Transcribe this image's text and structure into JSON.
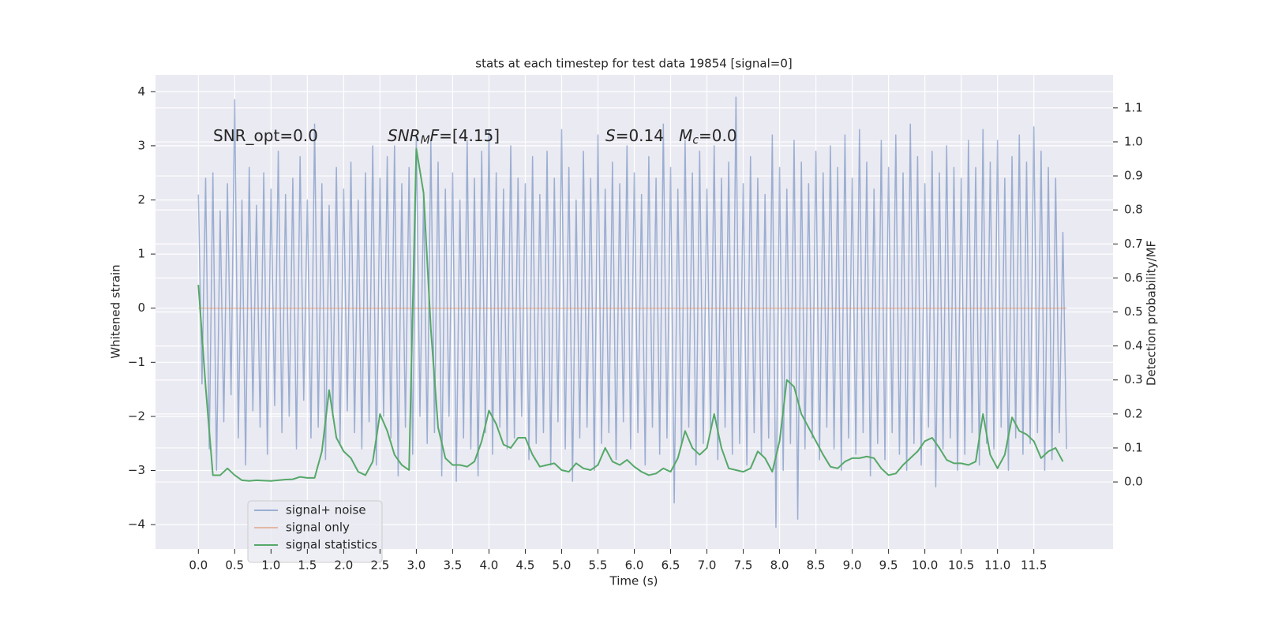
{
  "chart_data": {
    "type": "line",
    "title": "stats at each timestep for test data 19854 [signal=0]",
    "xlabel": "Time (s)",
    "ylabel": "Whitened strain",
    "y2label": "Detection probability/MF",
    "xlim": [
      -0.59,
      12.59
    ],
    "ylim": [
      -4.45,
      4.31
    ],
    "y2lim": [
      -0.197,
      1.197
    ],
    "grid": true,
    "legend": "lower left",
    "xticks": [
      {
        "value": 0,
        "label": "0.0"
      },
      0.5,
      {
        "value": 1,
        "label": "1.0"
      },
      1.5,
      {
        "value": 2,
        "label": "2.0"
      },
      2.5,
      {
        "value": 3,
        "label": "3.0"
      },
      3.5,
      {
        "value": 4,
        "label": "4.0"
      },
      4.5,
      {
        "value": 5,
        "label": "5.0"
      },
      5.5,
      {
        "value": 6,
        "label": "6.0"
      },
      6.5,
      {
        "value": 7,
        "label": "7.0"
      },
      7.5,
      {
        "value": 8,
        "label": "8.0"
      },
      8.5,
      {
        "value": 9,
        "label": "9.0"
      },
      9.5,
      {
        "value": 10,
        "label": "10.0"
      },
      10.5,
      {
        "value": 11,
        "label": "11.0"
      },
      11.5
    ],
    "yticks": [
      {
        "value": -4,
        "label": "−4"
      },
      {
        "value": -3,
        "label": "−3"
      },
      {
        "value": -2,
        "label": "−2"
      },
      {
        "value": -1,
        "label": "−1"
      },
      0,
      1,
      2,
      3,
      4
    ],
    "y2ticks": [
      {
        "value": 0,
        "label": "0.0"
      },
      0.1,
      0.2,
      0.3,
      0.4,
      0.5,
      0.6,
      0.7,
      0.8,
      0.9,
      {
        "value": 1,
        "label": "1.0"
      },
      1.1
    ],
    "annotations": [
      {
        "parts": [
          {
            "text": "SNR_opt=0.0",
            "style": "normal"
          }
        ]
      },
      {
        "parts": [
          {
            "text": "SNR",
            "style": "italic"
          },
          {
            "text": "M",
            "style": "italic-sub"
          },
          {
            "text": "F",
            "style": "italic"
          },
          {
            "text": "=[4.15]",
            "style": "normal"
          }
        ]
      },
      {
        "parts": [
          {
            "text": "S",
            "style": "italic"
          },
          {
            "text": "=0.14   ",
            "style": "normal"
          },
          {
            "text": "M",
            "style": "italic"
          },
          {
            "text": "c",
            "style": "italic-sub"
          },
          {
            "text": "=0.0",
            "style": "normal"
          }
        ]
      }
    ],
    "series": [
      {
        "name": "signal+ noise",
        "color": "#4c72b0",
        "alpha": 0.5,
        "axis": "y",
        "x": [
          0,
          0.05,
          0.1,
          0.15,
          0.2,
          0.25,
          0.3,
          0.35,
          0.4,
          0.45,
          0.5,
          0.55,
          0.6,
          0.65,
          0.7,
          0.75,
          0.8,
          0.85,
          0.9,
          0.95,
          1,
          1.05,
          1.1,
          1.15,
          1.2,
          1.25,
          1.3,
          1.35,
          1.4,
          1.45,
          1.5,
          1.55,
          1.6,
          1.65,
          1.7,
          1.75,
          1.8,
          1.85,
          1.9,
          1.95,
          2,
          2.05,
          2.1,
          2.15,
          2.2,
          2.25,
          2.3,
          2.35,
          2.4,
          2.45,
          2.5,
          2.55,
          2.6,
          2.65,
          2.7,
          2.75,
          2.8,
          2.85,
          2.9,
          2.95,
          3,
          3.05,
          3.1,
          3.15,
          3.2,
          3.25,
          3.3,
          3.35,
          3.4,
          3.45,
          3.5,
          3.55,
          3.6,
          3.65,
          3.7,
          3.75,
          3.8,
          3.85,
          3.9,
          3.95,
          4,
          4.05,
          4.1,
          4.15,
          4.2,
          4.25,
          4.3,
          4.35,
          4.4,
          4.45,
          4.5,
          4.55,
          4.6,
          4.65,
          4.7,
          4.75,
          4.8,
          4.85,
          4.9,
          4.95,
          5,
          5.05,
          5.1,
          5.15,
          5.2,
          5.25,
          5.3,
          5.35,
          5.4,
          5.45,
          5.5,
          5.55,
          5.6,
          5.65,
          5.7,
          5.75,
          5.8,
          5.85,
          5.9,
          5.95,
          6,
          6.05,
          6.1,
          6.15,
          6.2,
          6.25,
          6.3,
          6.35,
          6.4,
          6.45,
          6.5,
          6.55,
          6.6,
          6.65,
          6.7,
          6.75,
          6.8,
          6.85,
          6.9,
          6.95,
          7,
          7.05,
          7.1,
          7.15,
          7.2,
          7.25,
          7.3,
          7.35,
          7.4,
          7.45,
          7.5,
          7.55,
          7.6,
          7.65,
          7.7,
          7.75,
          7.8,
          7.85,
          7.9,
          7.95,
          8,
          8.05,
          8.1,
          8.15,
          8.2,
          8.25,
          8.3,
          8.35,
          8.4,
          8.45,
          8.5,
          8.55,
          8.6,
          8.65,
          8.7,
          8.75,
          8.8,
          8.85,
          8.9,
          8.95,
          9,
          9.05,
          9.1,
          9.15,
          9.2,
          9.25,
          9.3,
          9.35,
          9.4,
          9.45,
          9.5,
          9.55,
          9.6,
          9.65,
          9.7,
          9.75,
          9.8,
          9.85,
          9.9,
          9.95,
          10,
          10.05,
          10.1,
          10.15,
          10.2,
          10.25,
          10.3,
          10.35,
          10.4,
          10.45,
          10.5,
          10.55,
          10.6,
          10.65,
          10.7,
          10.75,
          10.8,
          10.85,
          10.9,
          10.95,
          11,
          11.05,
          11.1,
          11.15,
          11.2,
          11.25,
          11.3,
          11.35,
          11.4,
          11.45,
          11.5,
          11.55,
          11.6,
          11.65,
          11.7,
          11.75,
          11.8,
          11.85,
          11.9,
          11.95
        ],
        "values": [
          2.1,
          -1.4,
          2.4,
          -2.6,
          2.5,
          -3.0,
          1.8,
          -2.1,
          2.3,
          -1.6,
          3.85,
          -2.4,
          2.0,
          -2.9,
          2.6,
          -1.9,
          1.9,
          -2.2,
          2.5,
          -2.7,
          2.2,
          -1.8,
          2.9,
          -2.3,
          2.1,
          -2.0,
          2.4,
          -2.6,
          2.8,
          -1.7,
          2.0,
          -2.4,
          3.4,
          -2.2,
          2.3,
          -2.8,
          1.9,
          -2.0,
          2.6,
          -2.5,
          2.2,
          -1.9,
          2.7,
          -2.3,
          2.0,
          -2.6,
          2.5,
          -2.1,
          3.0,
          -2.9,
          2.4,
          -2.0,
          2.8,
          -2.4,
          3.0,
          -3.1,
          2.3,
          -2.2,
          2.6,
          -2.7,
          3.2,
          -2.0,
          2.1,
          -2.5,
          3.1,
          -2.3,
          2.7,
          -3.1,
          2.2,
          -2.0,
          2.5,
          -3.2,
          2.0,
          -2.4,
          3.1,
          -2.6,
          2.4,
          -3.1,
          2.9,
          -2.3,
          3.3,
          -2.7,
          2.5,
          -2.2,
          2.2,
          -2.6,
          3.0,
          -2.4,
          2.4,
          -2.0,
          2.3,
          -2.8,
          2.8,
          -2.5,
          2.1,
          -2.3,
          2.9,
          -2.9,
          2.4,
          -2.1,
          3.3,
          -2.6,
          2.6,
          -3.2,
          2.0,
          -2.4,
          2.9,
          -2.2,
          2.4,
          -3.0,
          3.2,
          -2.5,
          2.2,
          -2.3,
          2.7,
          -2.8,
          2.3,
          -2.1,
          3.0,
          -2.6,
          2.5,
          -2.3,
          2.1,
          -2.9,
          2.8,
          -2.2,
          2.4,
          -2.7,
          3.4,
          -2.4,
          2.6,
          -3.6,
          2.2,
          -2.5,
          3.1,
          -2.2,
          2.5,
          -2.9,
          2.9,
          -2.5,
          2.2,
          -2.3,
          3.0,
          -2.8,
          2.4,
          -2.2,
          2.7,
          -2.7,
          3.9,
          -2.5,
          2.3,
          -2.9,
          2.8,
          -2.3,
          2.4,
          -2.7,
          2.1,
          -2.4,
          3.2,
          -4.05,
          2.6,
          -3.0,
          2.2,
          -2.5,
          3.1,
          -3.9,
          2.7,
          -2.6,
          2.3,
          -2.4,
          2.9,
          -2.8,
          2.5,
          -2.2,
          3.0,
          -2.6,
          2.6,
          -3.0,
          3.2,
          -2.4,
          2.4,
          -2.7,
          3.3,
          -2.3,
          2.7,
          -3.1,
          2.2,
          -2.5,
          3.1,
          -2.8,
          2.6,
          -2.3,
          3.2,
          -2.7,
          2.5,
          -3.0,
          3.4,
          -2.5,
          2.8,
          -2.9,
          2.3,
          -2.2,
          2.9,
          -3.3,
          2.5,
          -2.6,
          3.0,
          -2.4,
          2.6,
          -3.0,
          2.4,
          -2.7,
          3.1,
          -2.3,
          2.6,
          -2.9,
          3.3,
          -2.5,
          2.7,
          -2.6,
          3.1,
          -2.2,
          2.4,
          -3.0,
          2.8,
          -2.4,
          3.2,
          -2.7,
          2.7,
          -2.5,
          3.35,
          -2.3,
          2.9,
          -3.0,
          2.6,
          -2.8,
          2.4,
          -2.3,
          1.4,
          -2.6
        ]
      },
      {
        "name": "signal only",
        "color": "#dd8452",
        "alpha": 0.5,
        "axis": "y",
        "x": [
          0,
          11.95
        ],
        "values": [
          0,
          0
        ]
      },
      {
        "name": "signal statistics",
        "color": "#55a868",
        "alpha": 1,
        "axis": "y2",
        "x": [
          0,
          0.1,
          0.2,
          0.3,
          0.4,
          0.5,
          0.6,
          0.7,
          0.8,
          0.9,
          1,
          1.1,
          1.2,
          1.3,
          1.4,
          1.5,
          1.6,
          1.7,
          1.8,
          1.9,
          2,
          2.1,
          2.2,
          2.3,
          2.4,
          2.5,
          2.6,
          2.7,
          2.8,
          2.9,
          3,
          3.1,
          3.2,
          3.3,
          3.4,
          3.5,
          3.6,
          3.7,
          3.8,
          3.9,
          4,
          4.1,
          4.2,
          4.3,
          4.4,
          4.5,
          4.6,
          4.7,
          4.8,
          4.9,
          5,
          5.1,
          5.2,
          5.3,
          5.4,
          5.5,
          5.6,
          5.7,
          5.8,
          5.9,
          6,
          6.1,
          6.2,
          6.3,
          6.4,
          6.5,
          6.6,
          6.7,
          6.8,
          6.9,
          7,
          7.1,
          7.2,
          7.3,
          7.4,
          7.5,
          7.6,
          7.7,
          7.8,
          7.9,
          8,
          8.1,
          8.2,
          8.3,
          8.4,
          8.5,
          8.6,
          8.7,
          8.8,
          8.9,
          9,
          9.1,
          9.2,
          9.3,
          9.4,
          9.5,
          9.6,
          9.7,
          9.8,
          9.9,
          10,
          10.1,
          10.2,
          10.3,
          10.4,
          10.5,
          10.6,
          10.7,
          10.8,
          10.9,
          11,
          11.1,
          11.2,
          11.3,
          11.4,
          11.5,
          11.6,
          11.7,
          11.8,
          11.9
        ],
        "values": [
          0.58,
          0.28,
          0.02,
          0.02,
          0.04,
          0.02,
          0.005,
          0.003,
          0.005,
          0.004,
          0.003,
          0.005,
          0.007,
          0.008,
          0.015,
          0.012,
          0.012,
          0.09,
          0.27,
          0.13,
          0.09,
          0.07,
          0.03,
          0.02,
          0.06,
          0.2,
          0.15,
          0.08,
          0.05,
          0.035,
          0.98,
          0.85,
          0.45,
          0.16,
          0.07,
          0.05,
          0.05,
          0.045,
          0.06,
          0.12,
          0.21,
          0.17,
          0.11,
          0.1,
          0.13,
          0.13,
          0.08,
          0.045,
          0.05,
          0.055,
          0.035,
          0.03,
          0.055,
          0.04,
          0.035,
          0.05,
          0.1,
          0.06,
          0.05,
          0.065,
          0.045,
          0.03,
          0.02,
          0.025,
          0.04,
          0.03,
          0.07,
          0.15,
          0.1,
          0.08,
          0.1,
          0.2,
          0.1,
          0.04,
          0.035,
          0.03,
          0.04,
          0.09,
          0.07,
          0.03,
          0.12,
          0.3,
          0.28,
          0.2,
          0.16,
          0.12,
          0.08,
          0.045,
          0.04,
          0.06,
          0.07,
          0.07,
          0.075,
          0.07,
          0.04,
          0.02,
          0.025,
          0.05,
          0.07,
          0.09,
          0.12,
          0.13,
          0.1,
          0.065,
          0.055,
          0.055,
          0.05,
          0.06,
          0.2,
          0.08,
          0.04,
          0.08,
          0.19,
          0.15,
          0.14,
          0.12,
          0.07,
          0.09,
          0.1,
          0.06
        ]
      }
    ]
  }
}
